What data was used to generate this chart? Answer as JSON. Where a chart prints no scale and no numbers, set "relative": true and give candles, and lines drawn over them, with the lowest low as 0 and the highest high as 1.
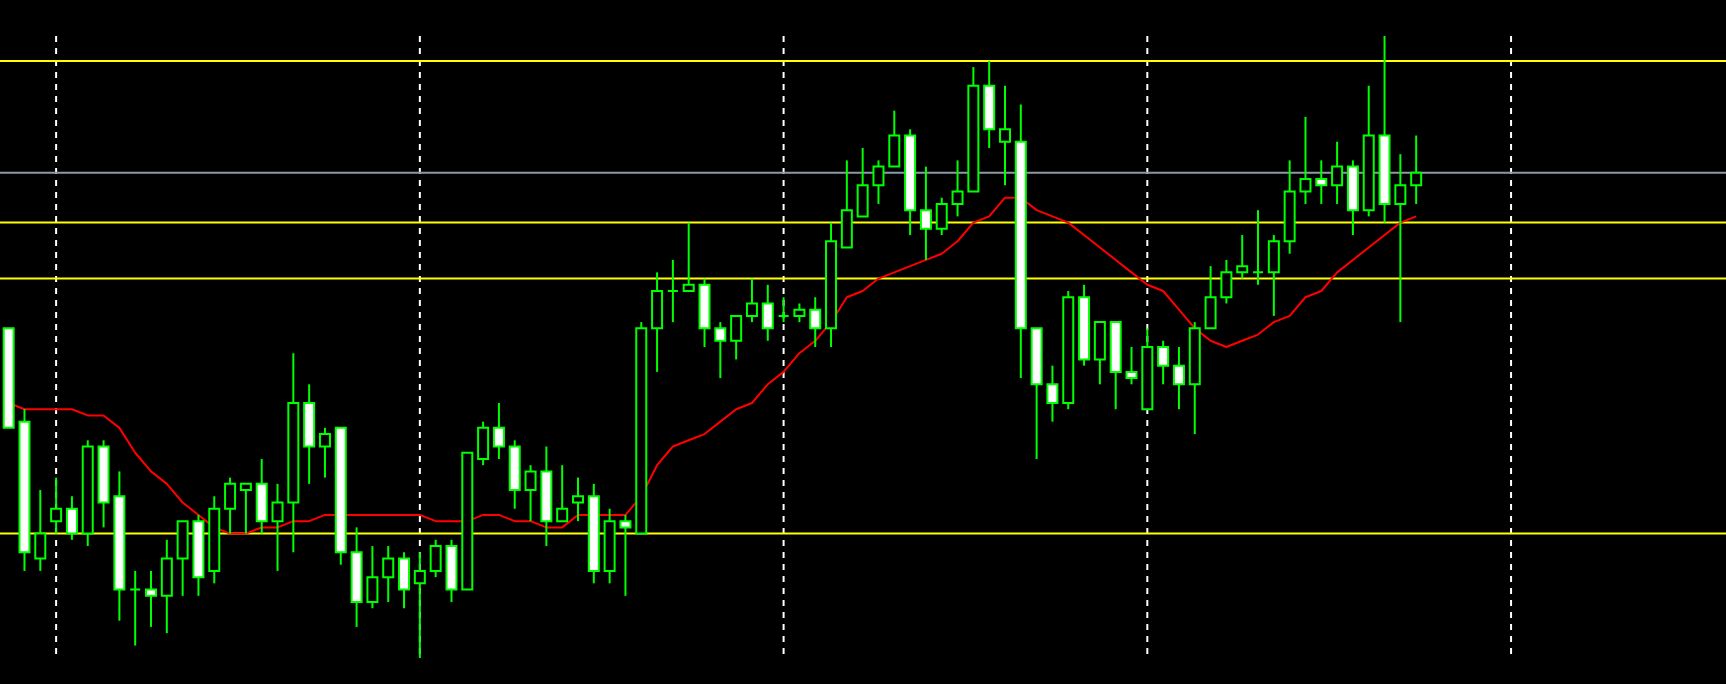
{
  "chart_data": {
    "type": "candlestick",
    "relative": true,
    "grid": "x",
    "categories": [
      null,
      null,
      null,
      null,
      null,
      null,
      null,
      null,
      null,
      null,
      null,
      null,
      null,
      null,
      null,
      null,
      null,
      null,
      null,
      null,
      null,
      null,
      null,
      null,
      null,
      null,
      null,
      null,
      null,
      null,
      null,
      null,
      null,
      null,
      null,
      null,
      null,
      null,
      null,
      null,
      null,
      null,
      null,
      null,
      null,
      null,
      null,
      null,
      null,
      null,
      null,
      null,
      null,
      null,
      null,
      null,
      null,
      null,
      null,
      null,
      null,
      null,
      null,
      null,
      null,
      null,
      null,
      null,
      null,
      null,
      null,
      null,
      null,
      null,
      null,
      null,
      null,
      null,
      null,
      null,
      null,
      null,
      null,
      null,
      null,
      null,
      null,
      null,
      null,
      null
    ],
    "color": "#00ff00",
    "ohlc": [
      [
        0.53,
        0.53,
        0.37,
        0.37
      ],
      [
        0.38,
        0.4,
        0.14,
        0.17
      ],
      [
        0.16,
        0.27,
        0.14,
        0.2
      ],
      [
        0.22,
        0.29,
        0.2,
        0.24
      ],
      [
        0.24,
        0.26,
        0.19,
        0.2
      ],
      [
        0.2,
        0.35,
        0.18,
        0.34
      ],
      [
        0.34,
        0.35,
        0.21,
        0.25
      ],
      [
        0.26,
        0.3,
        0.06,
        0.11
      ],
      [
        0.11,
        0.14,
        0.02,
        0.11
      ],
      [
        0.11,
        0.14,
        0.05,
        0.1
      ],
      [
        0.1,
        0.19,
        0.04,
        0.16
      ],
      [
        0.16,
        0.22,
        0.1,
        0.22
      ],
      [
        0.22,
        0.23,
        0.1,
        0.13
      ],
      [
        0.14,
        0.26,
        0.12,
        0.24
      ],
      [
        0.24,
        0.29,
        0.2,
        0.28
      ],
      [
        0.27,
        0.28,
        0.2,
        0.28
      ],
      [
        0.28,
        0.32,
        0.2,
        0.22
      ],
      [
        0.22,
        0.28,
        0.14,
        0.25
      ],
      [
        0.25,
        0.49,
        0.17,
        0.41
      ],
      [
        0.41,
        0.44,
        0.28,
        0.34
      ],
      [
        0.34,
        0.37,
        0.29,
        0.36
      ],
      [
        0.37,
        0.37,
        0.15,
        0.17
      ],
      [
        0.17,
        0.21,
        0.05,
        0.09
      ],
      [
        0.09,
        0.18,
        0.08,
        0.13
      ],
      [
        0.13,
        0.18,
        0.09,
        0.16
      ],
      [
        0.16,
        0.17,
        0.08,
        0.11
      ],
      [
        0.12,
        0.17,
        0,
        0.14
      ],
      [
        0.14,
        0.19,
        0.13,
        0.18
      ],
      [
        0.18,
        0.19,
        0.09,
        0.11
      ],
      [
        0.11,
        0.33,
        0.11,
        0.33
      ],
      [
        0.32,
        0.38,
        0.31,
        0.37
      ],
      [
        0.37,
        0.41,
        0.32,
        0.34
      ],
      [
        0.34,
        0.35,
        0.24,
        0.27
      ],
      [
        0.27,
        0.31,
        0.22,
        0.3
      ],
      [
        0.3,
        0.34,
        0.18,
        0.22
      ],
      [
        0.22,
        0.31,
        0.22,
        0.24
      ],
      [
        0.25,
        0.29,
        0.22,
        0.26
      ],
      [
        0.26,
        0.28,
        0.12,
        0.14
      ],
      [
        0.14,
        0.24,
        0.12,
        0.22
      ],
      [
        0.22,
        0.23,
        0.1,
        0.21
      ],
      [
        0.2,
        0.54,
        0.2,
        0.53
      ],
      [
        0.53,
        0.62,
        0.46,
        0.59
      ],
      [
        0.59,
        0.64,
        0.54,
        0.59
      ],
      [
        0.59,
        0.7,
        0.59,
        0.6
      ],
      [
        0.6,
        0.61,
        0.5,
        0.53
      ],
      [
        0.53,
        0.54,
        0.45,
        0.51
      ],
      [
        0.51,
        0.55,
        0.48,
        0.55
      ],
      [
        0.55,
        0.61,
        0.54,
        0.57
      ],
      [
        0.57,
        0.6,
        0.51,
        0.53
      ],
      [
        0.55,
        0.58,
        0.54,
        0.55
      ],
      [
        0.55,
        0.57,
        0.54,
        0.56
      ],
      [
        0.56,
        0.58,
        0.5,
        0.53
      ],
      [
        0.53,
        0.7,
        0.5,
        0.67
      ],
      [
        0.66,
        0.8,
        0.66,
        0.72
      ],
      [
        0.71,
        0.82,
        0.71,
        0.76
      ],
      [
        0.76,
        0.8,
        0.73,
        0.79
      ],
      [
        0.79,
        0.88,
        0.79,
        0.84
      ],
      [
        0.84,
        0.85,
        0.68,
        0.72
      ],
      [
        0.72,
        0.79,
        0.64,
        0.69
      ],
      [
        0.69,
        0.74,
        0.68,
        0.73
      ],
      [
        0.73,
        0.8,
        0.71,
        0.75
      ],
      [
        0.75,
        0.95,
        0.75,
        0.92
      ],
      [
        0.92,
        0.96,
        0.82,
        0.85
      ],
      [
        0.83,
        0.92,
        0.76,
        0.85
      ],
      [
        0.83,
        0.89,
        0.45,
        0.53
      ],
      [
        0.53,
        0.53,
        0.32,
        0.44
      ],
      [
        0.44,
        0.47,
        0.38,
        0.41
      ],
      [
        0.41,
        0.59,
        0.4,
        0.58
      ],
      [
        0.58,
        0.6,
        0.47,
        0.48
      ],
      [
        0.48,
        0.54,
        0.44,
        0.54
      ],
      [
        0.54,
        0.54,
        0.4,
        0.46
      ],
      [
        0.46,
        0.5,
        0.44,
        0.45
      ],
      [
        0.4,
        0.53,
        0.4,
        0.5
      ],
      [
        0.5,
        0.51,
        0.44,
        0.47
      ],
      [
        0.47,
        0.5,
        0.4,
        0.44
      ],
      [
        0.44,
        0.54,
        0.36,
        0.53
      ],
      [
        0.53,
        0.63,
        0.53,
        0.58
      ],
      [
        0.58,
        0.64,
        0.57,
        0.62
      ],
      [
        0.62,
        0.68,
        0.61,
        0.63
      ],
      [
        0.62,
        0.72,
        0.6,
        0.62
      ],
      [
        0.62,
        0.68,
        0.55,
        0.67
      ],
      [
        0.67,
        0.8,
        0.65,
        0.75
      ],
      [
        0.75,
        0.87,
        0.73,
        0.77
      ],
      [
        0.77,
        0.8,
        0.73,
        0.76
      ],
      [
        0.76,
        0.83,
        0.73,
        0.79
      ],
      [
        0.79,
        0.8,
        0.68,
        0.72
      ],
      [
        0.72,
        0.92,
        0.71,
        0.84
      ],
      [
        0.84,
        1,
        0.7,
        0.73
      ],
      [
        0.73,
        0.81,
        0.54,
        0.76
      ],
      [
        0.76,
        0.84,
        0.73,
        0.78
      ]
    ],
    "colors": [
      "#ffffff",
      "#ffffff",
      "#000000",
      "#000000",
      "#ffffff",
      "#000000",
      "#ffffff",
      "#ffffff",
      "#00ff00",
      "#ffffff",
      "#000000",
      "#000000",
      "#ffffff",
      "#000000",
      "#000000",
      "#000000",
      "#ffffff",
      "#000000",
      "#000000",
      "#ffffff",
      "#000000",
      "#ffffff",
      "#ffffff",
      "#000000",
      "#000000",
      "#ffffff",
      "#000000",
      "#000000",
      "#ffffff",
      "#000000",
      "#000000",
      "#ffffff",
      "#ffffff",
      "#000000",
      "#ffffff",
      "#000000",
      "#000000",
      "#ffffff",
      "#000000",
      "#ffffff",
      "#000000",
      "#000000",
      "#00ff00",
      "#000000",
      "#ffffff",
      "#ffffff",
      "#000000",
      "#000000",
      "#ffffff",
      "#00ff00",
      "#000000",
      "#ffffff",
      "#000000",
      "#000000",
      "#000000",
      "#000000",
      "#000000",
      "#ffffff",
      "#ffffff",
      "#000000",
      "#000000",
      "#000000",
      "#ffffff",
      "#000000",
      "#ffffff",
      "#ffffff",
      "#ffffff",
      "#000000",
      "#ffffff",
      "#000000",
      "#ffffff",
      "#ffffff",
      "#000000",
      "#ffffff",
      "#ffffff",
      "#000000",
      "#000000",
      "#000000",
      "#000000",
      "#00ff00",
      "#000000",
      "#000000",
      "#000000",
      "#ffffff",
      "#000000",
      "#ffffff",
      "#000000",
      "#ffffff",
      "#000000",
      "#000000"
    ],
    "series": [
      {
        "type": "line",
        "color": "#ff0000",
        "values": [
          0.41,
          0.4,
          0.4,
          0.4,
          0.4,
          0.39,
          0.39,
          0.37,
          0.33,
          0.3,
          0.28,
          0.25,
          0.23,
          0.21,
          0.2,
          0.2,
          0.21,
          0.21,
          0.22,
          0.22,
          0.23,
          0.23,
          0.23,
          0.23,
          0.23,
          0.23,
          0.23,
          0.22,
          0.22,
          0.22,
          0.23,
          0.23,
          0.22,
          0.22,
          0.21,
          0.21,
          0.23,
          0.23,
          0.23,
          0.23,
          0.26,
          0.31,
          0.34,
          0.35,
          0.36,
          0.38,
          0.4,
          0.41,
          0.44,
          0.46,
          0.49,
          0.51,
          0.54,
          0.58,
          0.59,
          0.61,
          0.62,
          0.63,
          0.64,
          0.65,
          0.67,
          0.7,
          0.71,
          0.74,
          0.74,
          0.72,
          0.71,
          0.7,
          0.68,
          0.66,
          0.64,
          0.62,
          0.6,
          0.59,
          0.56,
          0.53,
          0.51,
          0.5,
          0.51,
          0.52,
          0.54,
          0.55,
          0.58,
          0.59,
          0.62,
          0.64,
          0.66,
          0.68,
          0.7,
          0.71
        ]
      }
    ],
    "ref_lines": [
      {
        "axis": "y",
        "value": 0.96,
        "color": "#ffff00"
      },
      {
        "axis": "y",
        "value": 0.78,
        "color": "#8a9aa8"
      },
      {
        "axis": "y",
        "value": 0.7,
        "color": "#ffff00"
      },
      {
        "axis": "y",
        "value": 0.61,
        "color": "#ffff00"
      },
      {
        "axis": "y",
        "value": 0.2,
        "color": "#ffff00"
      }
    ]
  }
}
